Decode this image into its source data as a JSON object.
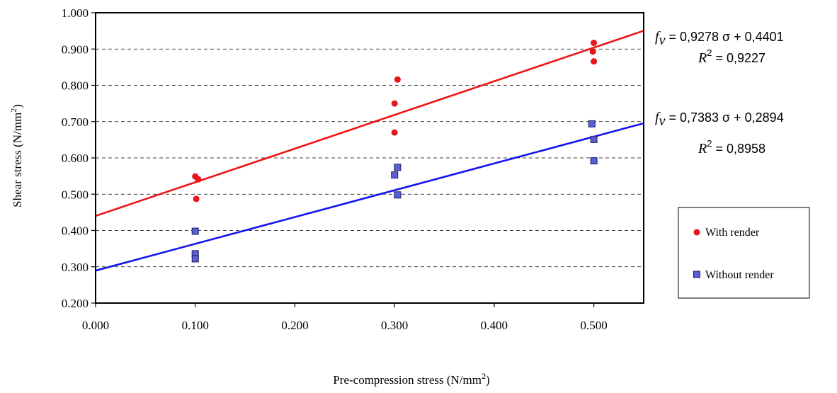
{
  "chart_data": {
    "type": "scatter",
    "xlabel": "Pre-compression stress (N/mm",
    "xlabel_sup": "2",
    "xlabel_end": ")",
    "ylabel": "Shear stress (N/mm",
    "ylabel_sup": "2",
    "ylabel_end": ")",
    "xlim": [
      0.0,
      0.55
    ],
    "ylim": [
      0.2,
      1.0
    ],
    "x_ticks": [
      "0.000",
      "0.100",
      "0.200",
      "0.300",
      "0.400",
      "0.500"
    ],
    "y_ticks": [
      "0.200",
      "0.300",
      "0.400",
      "0.500",
      "0.600",
      "0.700",
      "0.800",
      "0.900",
      "1.000"
    ],
    "grid": "horizontal-dashed",
    "legend_position": "right",
    "series": [
      {
        "name": "With render",
        "color": "#e8131b",
        "marker": "circle",
        "points": [
          [
            0.1,
            0.549
          ],
          [
            0.103,
            0.541
          ],
          [
            0.101,
            0.487
          ],
          [
            0.3,
            0.75
          ],
          [
            0.303,
            0.816
          ],
          [
            0.3,
            0.67
          ],
          [
            0.5,
            0.917
          ],
          [
            0.499,
            0.893
          ],
          [
            0.5,
            0.866
          ]
        ],
        "trend": {
          "slope": 0.9278,
          "intercept": 0.4401,
          "color": "#f01414",
          "equation": {
            "var": "f",
            "sub": "v",
            "rest": " = 0,9278 σ + 0,4401",
            "r2_label": "R",
            "r2_sup": "2",
            "r2_rest": " = 0,9227"
          }
        }
      },
      {
        "name": "Without render",
        "color": "#5a5ed6",
        "marker": "square",
        "points": [
          [
            0.1,
            0.398
          ],
          [
            0.1,
            0.336
          ],
          [
            0.1,
            0.322
          ],
          [
            0.303,
            0.574
          ],
          [
            0.3,
            0.553
          ],
          [
            0.303,
            0.498
          ],
          [
            0.498,
            0.694
          ],
          [
            0.5,
            0.651
          ],
          [
            0.5,
            0.592
          ]
        ],
        "trend": {
          "slope": 0.7383,
          "intercept": 0.2894,
          "color": "#1414f0",
          "equation": {
            "var": "f",
            "sub": "v",
            "rest": "  = 0,7383 σ + 0,2894",
            "r2_label": "R",
            "r2_sup": "2",
            "r2_rest": " = 0,8958"
          }
        }
      }
    ]
  }
}
